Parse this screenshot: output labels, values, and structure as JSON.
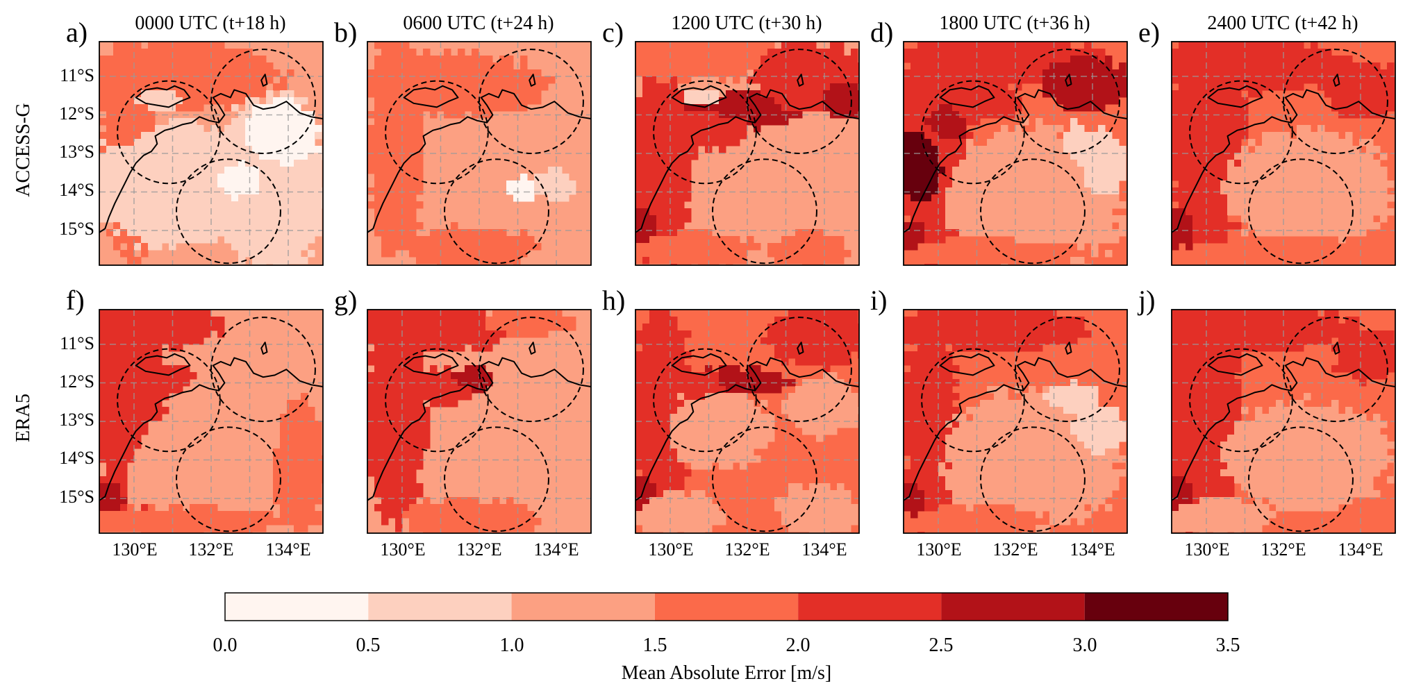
{
  "figure": {
    "panel_titles": [
      "0000 UTC (t+18 h)",
      "0600 UTC (t+24 h)",
      "1200 UTC (t+30 h)",
      "1800 UTC (t+36 h)",
      "2400 UTC (t+42 h)"
    ],
    "row_labels": [
      "ACCESS-G",
      "ERA5"
    ],
    "panel_letters": [
      "a)",
      "b)",
      "c)",
      "d)",
      "e)",
      "f)",
      "g)",
      "h)",
      "i)",
      "j)"
    ],
    "lat_ticks": [
      "11°S",
      "12°S",
      "13°S",
      "14°S",
      "15°S"
    ],
    "lon_ticks": [
      "130°E",
      "132°E",
      "134°E"
    ],
    "colorbar": {
      "label": "Mean Absolute Error [m/s]",
      "ticks": [
        "0.0",
        "0.5",
        "1.0",
        "1.5",
        "2.0",
        "2.5",
        "3.0",
        "3.5"
      ],
      "bounds": [
        0.0,
        0.5,
        1.0,
        1.5,
        2.0,
        2.5,
        3.0,
        3.5
      ],
      "colors": [
        "#fff5f0",
        "#fdd0bf",
        "#fca082",
        "#fb6a4a",
        "#e32f27",
        "#b21218",
        "#67000d"
      ]
    }
  },
  "map_extent": {
    "lon": [
      129.1,
      134.9
    ],
    "lat": [
      -15.9,
      -10.1
    ]
  },
  "grid": {
    "lon_lines": [
      130,
      131,
      132,
      133,
      134
    ],
    "lat_lines": [
      -11,
      -12,
      -13,
      -14,
      -15
    ]
  },
  "circles": [
    {
      "lon": 130.9,
      "lat": -12.45,
      "radius_deg": 1.33
    },
    {
      "lon": 133.35,
      "lat": -11.65,
      "radius_deg": 1.35
    },
    {
      "lon": 132.45,
      "lat": -14.5,
      "radius_deg": 1.35
    }
  ],
  "coastline": [
    [
      129.1,
      -15.05
    ],
    [
      129.25,
      -14.95
    ],
    [
      129.35,
      -14.65
    ],
    [
      129.5,
      -14.3
    ],
    [
      129.65,
      -14.0
    ],
    [
      129.75,
      -13.8
    ],
    [
      129.9,
      -13.5
    ],
    [
      130.05,
      -13.25
    ],
    [
      130.25,
      -13.05
    ],
    [
      130.45,
      -12.95
    ],
    [
      130.6,
      -12.75
    ],
    [
      130.55,
      -12.55
    ],
    [
      130.8,
      -12.4
    ],
    [
      131.0,
      -12.35
    ],
    [
      131.25,
      -12.25
    ],
    [
      131.5,
      -12.2
    ],
    [
      131.7,
      -12.05
    ],
    [
      131.95,
      -12.15
    ],
    [
      132.2,
      -12.2
    ],
    [
      132.35,
      -12.0
    ],
    [
      132.2,
      -11.75
    ],
    [
      132.05,
      -11.55
    ],
    [
      132.25,
      -11.45
    ],
    [
      132.5,
      -11.55
    ],
    [
      132.6,
      -11.35
    ],
    [
      132.9,
      -11.45
    ],
    [
      133.1,
      -11.75
    ],
    [
      133.35,
      -11.85
    ],
    [
      133.65,
      -11.8
    ],
    [
      133.95,
      -11.65
    ],
    [
      134.3,
      -11.95
    ],
    [
      134.6,
      -12.05
    ],
    [
      134.9,
      -12.1
    ]
  ],
  "islands": [
    [
      [
        130.05,
        -11.55
      ],
      [
        130.3,
        -11.35
      ],
      [
        130.6,
        -11.3
      ],
      [
        130.85,
        -11.35
      ],
      [
        131.05,
        -11.25
      ],
      [
        131.3,
        -11.35
      ],
      [
        131.45,
        -11.55
      ],
      [
        131.2,
        -11.65
      ],
      [
        130.9,
        -11.8
      ],
      [
        130.6,
        -11.75
      ],
      [
        130.3,
        -11.7
      ],
      [
        130.05,
        -11.55
      ]
    ],
    [
      [
        133.3,
        -11.1
      ],
      [
        133.4,
        -10.95
      ],
      [
        133.45,
        -11.2
      ],
      [
        133.35,
        -11.25
      ],
      [
        133.3,
        -11.1
      ]
    ]
  ],
  "panels": [
    {
      "id": "a",
      "background": 2,
      "blobs": [
        {
          "lon": 129.9,
          "lat": -12.6,
          "rlon": 0.75,
          "rlat": 3.2,
          "v": 3
        },
        {
          "lon": 131.2,
          "lat": -11.0,
          "rlon": 2.6,
          "rlat": 0.9,
          "v": 3
        },
        {
          "lon": 131.0,
          "lat": -13.8,
          "rlon": 2.3,
          "rlat": 1.6,
          "v": 1
        },
        {
          "lon": 133.5,
          "lat": -13.8,
          "rlon": 1.6,
          "rlat": 2.3,
          "v": 1
        },
        {
          "lon": 133.8,
          "lat": -12.5,
          "rlon": 1.0,
          "rlat": 0.9,
          "v": 0
        },
        {
          "lon": 132.8,
          "lat": -13.7,
          "rlon": 0.6,
          "rlat": 0.5,
          "v": 0
        },
        {
          "lon": 130.7,
          "lat": -11.6,
          "rlon": 0.6,
          "rlat": 0.3,
          "v": 1
        }
      ]
    },
    {
      "id": "b",
      "background": 2,
      "blobs": [
        {
          "lon": 129.85,
          "lat": -12.7,
          "rlon": 0.75,
          "rlat": 3.1,
          "v": 3
        },
        {
          "lon": 131.3,
          "lat": -11.2,
          "rlon": 2.6,
          "rlat": 0.8,
          "v": 3
        },
        {
          "lon": 131.8,
          "lat": -15.5,
          "rlon": 1.7,
          "rlat": 0.6,
          "v": 3
        },
        {
          "lon": 133.9,
          "lat": -13.8,
          "rlon": 0.6,
          "rlat": 0.4,
          "v": 1
        },
        {
          "lon": 133.1,
          "lat": -13.9,
          "rlon": 0.4,
          "rlat": 0.3,
          "v": 0
        }
      ]
    },
    {
      "id": "c",
      "background": 2,
      "blobs": [
        {
          "lon": 129.8,
          "lat": -13.2,
          "rlon": 0.8,
          "rlat": 2.8,
          "v": 4
        },
        {
          "lon": 129.3,
          "lat": -15.0,
          "rlon": 0.4,
          "rlat": 0.6,
          "v": 5
        },
        {
          "lon": 130.6,
          "lat": -10.5,
          "rlon": 2.3,
          "rlat": 0.6,
          "v": 3
        },
        {
          "lon": 131.8,
          "lat": -11.9,
          "rlon": 1.6,
          "rlat": 0.5,
          "v": 5
        },
        {
          "lon": 130.9,
          "lat": -12.4,
          "rlon": 1.2,
          "rlat": 0.5,
          "v": 4
        },
        {
          "lon": 133.6,
          "lat": -11.0,
          "rlon": 1.5,
          "rlat": 0.9,
          "v": 4
        },
        {
          "lon": 134.5,
          "lat": -11.6,
          "rlon": 0.6,
          "rlat": 0.5,
          "v": 5
        },
        {
          "lon": 130.6,
          "lat": -15.5,
          "rlon": 1.6,
          "rlat": 0.5,
          "v": 3
        },
        {
          "lon": 133.6,
          "lat": -15.5,
          "rlon": 1.0,
          "rlat": 0.5,
          "v": 3
        },
        {
          "lon": 130.8,
          "lat": -11.55,
          "rlon": 0.5,
          "rlat": 0.25,
          "v": 1
        }
      ]
    },
    {
      "id": "d",
      "background": 3,
      "blobs": [
        {
          "lon": 129.9,
          "lat": -12.7,
          "rlon": 1.0,
          "rlat": 3.1,
          "v": 4
        },
        {
          "lon": 129.6,
          "lat": -13.3,
          "rlon": 0.6,
          "rlat": 1.0,
          "v": 6
        },
        {
          "lon": 130.2,
          "lat": -12.2,
          "rlon": 0.6,
          "rlat": 0.5,
          "v": 5
        },
        {
          "lon": 129.3,
          "lat": -15.3,
          "rlon": 0.4,
          "rlat": 0.6,
          "v": 5
        },
        {
          "lon": 131.5,
          "lat": -10.6,
          "rlon": 2.6,
          "rlat": 0.7,
          "v": 4
        },
        {
          "lon": 131.2,
          "lat": -11.7,
          "rlon": 1.0,
          "rlat": 0.4,
          "v": 4
        },
        {
          "lon": 133.8,
          "lat": -11.2,
          "rlon": 1.2,
          "rlat": 0.7,
          "v": 5
        },
        {
          "lon": 132.5,
          "lat": -14.2,
          "rlon": 2.4,
          "rlat": 1.9,
          "v": 2
        },
        {
          "lon": 134.3,
          "lat": -13.3,
          "rlon": 0.6,
          "rlat": 0.9,
          "v": 1
        },
        {
          "lon": 133.6,
          "lat": -12.7,
          "rlon": 0.4,
          "rlat": 0.5,
          "v": 1
        },
        {
          "lon": 131.5,
          "lat": -15.6,
          "rlon": 2.6,
          "rlat": 0.4,
          "v": 3
        }
      ]
    },
    {
      "id": "e",
      "background": 3,
      "blobs": [
        {
          "lon": 130.0,
          "lat": -12.6,
          "rlon": 1.0,
          "rlat": 3.2,
          "v": 4
        },
        {
          "lon": 129.3,
          "lat": -15.0,
          "rlon": 0.4,
          "rlat": 0.6,
          "v": 5
        },
        {
          "lon": 131.3,
          "lat": -10.7,
          "rlon": 2.5,
          "rlat": 0.7,
          "v": 4
        },
        {
          "lon": 134.1,
          "lat": -11.4,
          "rlon": 1.0,
          "rlat": 0.8,
          "v": 4
        },
        {
          "lon": 132.6,
          "lat": -13.9,
          "rlon": 2.3,
          "rlat": 1.5,
          "v": 2
        },
        {
          "lon": 131.8,
          "lat": -15.6,
          "rlon": 2.6,
          "rlat": 0.4,
          "v": 3
        }
      ]
    },
    {
      "id": "f",
      "background": 2,
      "blobs": [
        {
          "lon": 129.9,
          "lat": -12.7,
          "rlon": 0.9,
          "rlat": 3.1,
          "v": 4
        },
        {
          "lon": 129.3,
          "lat": -15.0,
          "rlon": 0.4,
          "rlat": 0.5,
          "v": 5
        },
        {
          "lon": 130.5,
          "lat": -10.5,
          "rlon": 2.0,
          "rlat": 0.6,
          "v": 4
        },
        {
          "lon": 130.6,
          "lat": -11.9,
          "rlon": 1.0,
          "rlat": 0.4,
          "v": 4
        },
        {
          "lon": 131.3,
          "lat": -14.2,
          "rlon": 1.6,
          "rlat": 1.4,
          "v": 2
        },
        {
          "lon": 134.3,
          "lat": -14.2,
          "rlon": 0.7,
          "rlat": 1.7,
          "v": 3
        },
        {
          "lon": 131.5,
          "lat": -15.6,
          "rlon": 2.6,
          "rlat": 0.4,
          "v": 3
        }
      ]
    },
    {
      "id": "g",
      "background": 2,
      "blobs": [
        {
          "lon": 129.85,
          "lat": -12.7,
          "rlon": 0.8,
          "rlat": 3.1,
          "v": 4
        },
        {
          "lon": 130.7,
          "lat": -10.6,
          "rlon": 2.2,
          "rlat": 0.6,
          "v": 4
        },
        {
          "lon": 131.0,
          "lat": -12.1,
          "rlon": 1.0,
          "rlat": 0.5,
          "v": 4
        },
        {
          "lon": 131.8,
          "lat": -11.9,
          "rlon": 0.5,
          "rlat": 0.3,
          "v": 5
        },
        {
          "lon": 131.7,
          "lat": -15.5,
          "rlon": 1.8,
          "rlat": 0.5,
          "v": 3
        },
        {
          "lon": 133.3,
          "lat": -10.4,
          "rlon": 1.2,
          "rlat": 0.4,
          "v": 3
        }
      ]
    },
    {
      "id": "h",
      "background": 3,
      "blobs": [
        {
          "lon": 129.8,
          "lat": -12.8,
          "rlon": 0.8,
          "rlat": 2.9,
          "v": 4
        },
        {
          "lon": 129.3,
          "lat": -15.0,
          "rlon": 0.4,
          "rlat": 0.6,
          "v": 5
        },
        {
          "lon": 131.6,
          "lat": -12.0,
          "rlon": 1.5,
          "rlat": 0.4,
          "v": 5
        },
        {
          "lon": 130.8,
          "lat": -12.2,
          "rlon": 0.8,
          "rlat": 0.5,
          "v": 4
        },
        {
          "lon": 133.8,
          "lat": -10.8,
          "rlon": 1.3,
          "rlat": 0.8,
          "v": 4
        },
        {
          "lon": 131.2,
          "lat": -13.2,
          "rlon": 1.5,
          "rlat": 1.0,
          "v": 2
        },
        {
          "lon": 134.0,
          "lat": -12.6,
          "rlon": 1.0,
          "rlat": 0.8,
          "v": 2
        },
        {
          "lon": 130.2,
          "lat": -15.4,
          "rlon": 1.2,
          "rlat": 0.6,
          "v": 2
        },
        {
          "lon": 133.8,
          "lat": -15.3,
          "rlon": 1.0,
          "rlat": 0.7,
          "v": 2
        }
      ]
    },
    {
      "id": "i",
      "background": 3,
      "blobs": [
        {
          "lon": 129.8,
          "lat": -13.0,
          "rlon": 0.7,
          "rlat": 2.8,
          "v": 4
        },
        {
          "lon": 129.3,
          "lat": -15.1,
          "rlon": 0.4,
          "rlat": 0.5,
          "v": 5
        },
        {
          "lon": 131.3,
          "lat": -10.6,
          "rlon": 2.6,
          "rlat": 0.6,
          "v": 4
        },
        {
          "lon": 132.4,
          "lat": -14.0,
          "rlon": 2.4,
          "rlat": 1.8,
          "v": 2
        },
        {
          "lon": 133.5,
          "lat": -12.4,
          "rlon": 0.7,
          "rlat": 0.4,
          "v": 1
        },
        {
          "lon": 134.2,
          "lat": -13.2,
          "rlon": 0.7,
          "rlat": 0.6,
          "v": 1
        },
        {
          "lon": 131.0,
          "lat": -15.6,
          "rlon": 2.0,
          "rlat": 0.4,
          "v": 3
        }
      ]
    },
    {
      "id": "j",
      "background": 3,
      "blobs": [
        {
          "lon": 129.9,
          "lat": -12.7,
          "rlon": 1.0,
          "rlat": 3.1,
          "v": 4
        },
        {
          "lon": 129.3,
          "lat": -15.0,
          "rlon": 0.4,
          "rlat": 0.5,
          "v": 5
        },
        {
          "lon": 131.3,
          "lat": -10.6,
          "rlon": 2.6,
          "rlat": 0.6,
          "v": 4
        },
        {
          "lon": 134.2,
          "lat": -11.3,
          "rlon": 0.9,
          "rlat": 0.7,
          "v": 4
        },
        {
          "lon": 132.6,
          "lat": -13.9,
          "rlon": 2.3,
          "rlat": 1.4,
          "v": 2
        },
        {
          "lon": 130.4,
          "lat": -15.5,
          "rlon": 1.4,
          "rlat": 0.5,
          "v": 2
        }
      ]
    }
  ]
}
